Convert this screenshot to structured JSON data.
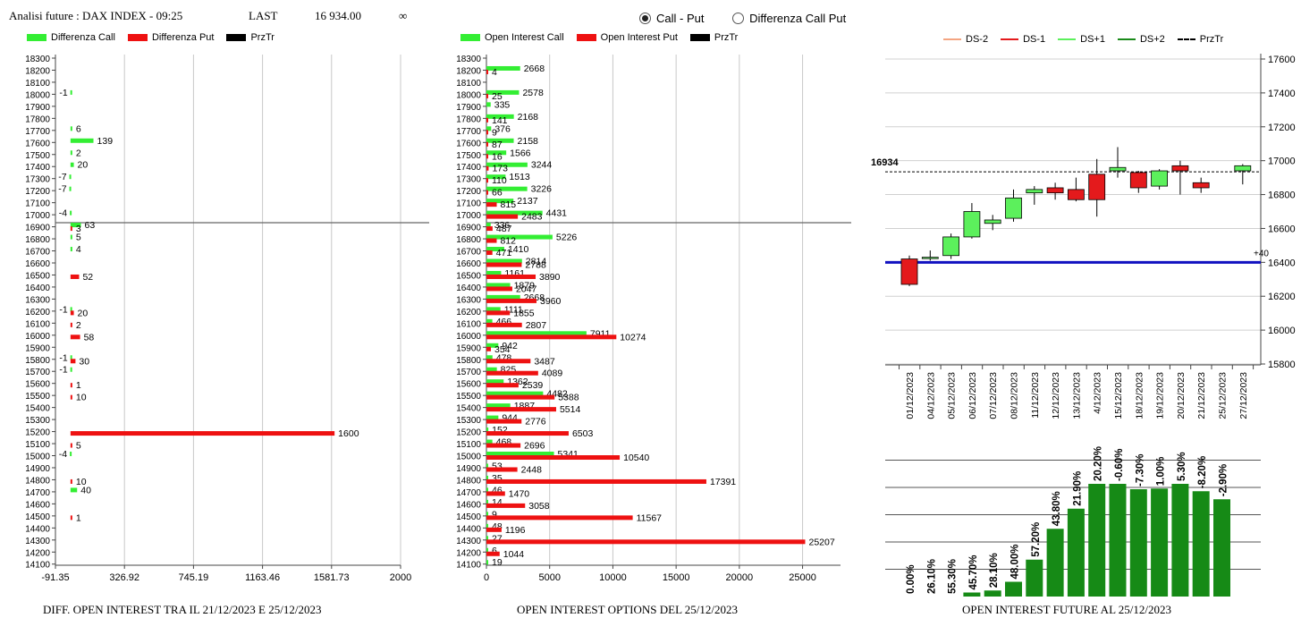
{
  "header": {
    "title": "Analisi future : DAX INDEX - 09:25",
    "last_label": "LAST",
    "last_value": "16 934.00",
    "infinity": "∞"
  },
  "radios": [
    {
      "label": "Call - Put",
      "checked": true
    },
    {
      "label": "Differenza Call Put",
      "checked": false
    }
  ],
  "colors": {
    "call": "#33ee33",
    "put": "#ee1111",
    "prztr": "#000000",
    "ds_minus2": "#f4a582",
    "ds_minus1": "#e41a1c",
    "ds_plus1": "#5cf05c",
    "ds_plus2": "#1a8a1a",
    "blue_line": "#1010c0",
    "bar_green": "#168a16"
  },
  "legend_left": [
    {
      "label": "Differenza Call",
      "color": "#33ee33",
      "icon": "swatch"
    },
    {
      "label": "Differenza Put",
      "color": "#ee1111",
      "icon": "swatch"
    },
    {
      "label": "PrzTr",
      "color": "#000000",
      "icon": "swatch"
    }
  ],
  "legend_mid": [
    {
      "label": "Open Interest Call",
      "color": "#33ee33",
      "icon": "swatch"
    },
    {
      "label": "Open Interest Put",
      "color": "#ee1111",
      "icon": "swatch"
    },
    {
      "label": "PrzTr",
      "color": "#000000",
      "icon": "swatch"
    }
  ],
  "legend_right": [
    {
      "label": "DS-2",
      "color": "#f4a582",
      "icon": "line"
    },
    {
      "label": "DS-1",
      "color": "#e41a1c",
      "icon": "line"
    },
    {
      "label": "DS+1",
      "color": "#5cf05c",
      "icon": "line"
    },
    {
      "label": "DS+2",
      "color": "#1a8a1a",
      "icon": "line"
    },
    {
      "label": "PrzTr",
      "color": "#000000",
      "icon": "dashed"
    }
  ],
  "captions": {
    "left": "DIFF. OPEN INTEREST TRA IL 21/12/2023 E 25/12/2023",
    "mid": "OPEN INTEREST OPTIONS DEL 25/12/2023",
    "right": "OPEN INTEREST FUTURE AL 25/12/2023"
  },
  "chart_data": [
    {
      "type": "bar",
      "orientation": "horizontal",
      "caption": "DIFF. OPEN INTEREST TRA IL 21/12/2023 E 25/12/2023",
      "xlim": [
        -91.35,
        2000
      ],
      "xticks": [
        "-91.35",
        "326.92",
        "745.19",
        "1163.46",
        "1581.73",
        "2000"
      ],
      "strikes": [
        18300,
        18200,
        18100,
        18000,
        17900,
        17800,
        17700,
        17600,
        17500,
        17400,
        17300,
        17200,
        17100,
        17000,
        16900,
        16800,
        16700,
        16600,
        16500,
        16400,
        16300,
        16200,
        16100,
        16000,
        15900,
        15800,
        15700,
        15600,
        15500,
        15400,
        15300,
        15200,
        15100,
        15000,
        14900,
        14800,
        14700,
        14600,
        14500,
        14400,
        14300,
        14200,
        14100
      ],
      "series": [
        {
          "name": "Differenza Call",
          "values": {
            "18000": -1,
            "17700": 6,
            "17600": 139,
            "17500": 2,
            "17400": 20,
            "17300": -7,
            "17200": -7,
            "17000": -4,
            "16900": 63,
            "16800": 5,
            "16700": 4,
            "16200": -1,
            "15800": -1,
            "15700": -1,
            "15000": -4,
            "14700": 40
          }
        },
        {
          "name": "Differenza Put",
          "values": {
            "16900": 3,
            "16500": 52,
            "16200": 20,
            "16100": 2,
            "16000": 58,
            "15800": 30,
            "15600": 1,
            "15500": 10,
            "15200": 1600,
            "15100": 5,
            "14800": 10,
            "14500": 1
          }
        }
      ],
      "prztr": 16934
    },
    {
      "type": "bar",
      "orientation": "horizontal",
      "caption": "OPEN INTEREST OPTIONS DEL 25/12/2023",
      "xlim": [
        0,
        28000
      ],
      "xticks": [
        "0",
        "5000",
        "10000",
        "15000",
        "20000",
        "25000"
      ],
      "strikes": [
        18300,
        18200,
        18100,
        18000,
        17900,
        17800,
        17700,
        17600,
        17500,
        17400,
        17300,
        17200,
        17100,
        17000,
        16900,
        16800,
        16700,
        16600,
        16500,
        16400,
        16300,
        16200,
        16100,
        16000,
        15900,
        15800,
        15700,
        15600,
        15500,
        15400,
        15300,
        15200,
        15100,
        15000,
        14900,
        14800,
        14700,
        14600,
        14500,
        14400,
        14300,
        14200,
        14100
      ],
      "series": [
        {
          "name": "Open Interest Call",
          "values": {
            "18200": 2668,
            "18000": 2578,
            "17900": 335,
            "17800": 2168,
            "17700": 376,
            "17600": 2158,
            "17500": 1566,
            "17400": 3244,
            "17300": 1513,
            "17200": 3226,
            "17100": 2137,
            "17000": 4431,
            "16900": 336,
            "16800": 5226,
            "16700": 1410,
            "16600": 2814,
            "16500": 1161,
            "16400": 1879,
            "16300": 2668,
            "16200": 1111,
            "16100": 466,
            "16000": 7911,
            "15900": 942,
            "15800": 478,
            "15700": 825,
            "15600": 1362,
            "15500": 4482,
            "15400": 1887,
            "15300": 944,
            "15200": 152,
            "15100": 468,
            "15000": 5341,
            "14900": 53,
            "14800": 35,
            "14700": 46,
            "14600": 14,
            "14500": 9,
            "14400": 48,
            "14300": 27,
            "14200": 6,
            "14100": 19
          }
        },
        {
          "name": "Open Interest Put",
          "values": {
            "18200": 4,
            "18000": 25,
            "17800": 141,
            "17700": 9,
            "17600": 87,
            "17500": 16,
            "17400": 173,
            "17300": 110,
            "17200": 66,
            "17100": 815,
            "17000": 2483,
            "16900": 487,
            "16800": 812,
            "16700": 471,
            "16600": 2788,
            "16500": 3890,
            "16400": 2047,
            "16300": 3960,
            "16200": 1855,
            "16100": 2807,
            "16000": 10274,
            "15900": 354,
            "15800": 3487,
            "15700": 4089,
            "15600": 2539,
            "15500": 5388,
            "15400": 5514,
            "15300": 2776,
            "15200": 6503,
            "15100": 2696,
            "15000": 10540,
            "14900": 2448,
            "14800": 17391,
            "14700": 1470,
            "14600": 3058,
            "14500": 11567,
            "14400": 1196,
            "14300": 25207,
            "14200": 1044
          }
        }
      ],
      "prztr": 16934
    },
    {
      "type": "candlestick",
      "dates": [
        "01/12/2023",
        "04/12/2023",
        "05/12/2023",
        "06/12/2023",
        "07/12/2023",
        "08/12/2023",
        "11/12/2023",
        "12/12/2023",
        "13/12/2023",
        "4/12/2023",
        "15/12/2023",
        "18/12/2023",
        "19/12/2023",
        "20/12/2023",
        "21/12/2023",
        "25/12/2023",
        "27/12/2023"
      ],
      "ohlc": [
        [
          16420,
          16440,
          16260,
          16270
        ],
        [
          16430,
          16470,
          16410,
          16430
        ],
        [
          16440,
          16570,
          16420,
          16550
        ],
        [
          16550,
          16750,
          16540,
          16700
        ],
        [
          16630,
          16680,
          16590,
          16650
        ],
        [
          16660,
          16830,
          16640,
          16780
        ],
        [
          16810,
          16850,
          16740,
          16830
        ],
        [
          16840,
          16870,
          16770,
          16810
        ],
        [
          16830,
          16900,
          16760,
          16770
        ],
        [
          16920,
          17010,
          16670,
          16770
        ],
        [
          16940,
          17080,
          16900,
          16960
        ],
        [
          16930,
          16940,
          16810,
          16840
        ],
        [
          16850,
          16950,
          16830,
          16940
        ],
        [
          16970,
          17000,
          16800,
          16940
        ],
        [
          16870,
          16900,
          16810,
          16840
        ],
        null,
        [
          16940,
          16980,
          16860,
          16970
        ]
      ],
      "ylim": [
        15800,
        17600
      ],
      "yticks": [
        "17600",
        "17400",
        "17200",
        "17000",
        "16800",
        "16600",
        "16400",
        "16200",
        "16000",
        "15800"
      ],
      "prztr_label": "16934",
      "prztr_value": 16934,
      "blue_line_value": 16400,
      "blue_line_label": "+40"
    },
    {
      "type": "bar",
      "caption": "OPEN INTEREST FUTURE AL 25/12/2023",
      "categories": [
        "01/12/2023",
        "04/12/2023",
        "05/12/2023",
        "06/12/2023",
        "07/12/2023",
        "08/12/2023",
        "11/12/2023",
        "12/12/2023",
        "13/12/2023",
        "4/12/2023",
        "15/12/2023",
        "18/12/2023",
        "19/12/2023",
        "20/12/2023",
        "21/12/2023",
        "25/12/2023",
        "27/12/2023"
      ],
      "values": [
        0,
        0,
        0,
        3.0,
        4.5,
        11.0,
        27.5,
        50.5,
        65.5,
        84.0,
        84.0,
        80.0,
        80.5,
        84.0,
        78.5,
        72.5,
        0
      ],
      "value_scale_max": 100,
      "labels": [
        "0.00%",
        "26.10%",
        "55.30%",
        "45.70%",
        "28.10%",
        "48.00%",
        "57.20%",
        "43.80%",
        "21.90%",
        "20.20%",
        "-0.60%",
        "-7.30%",
        "1.00%",
        "5.30%",
        "-8.20%",
        "-2.90%",
        ""
      ]
    }
  ]
}
